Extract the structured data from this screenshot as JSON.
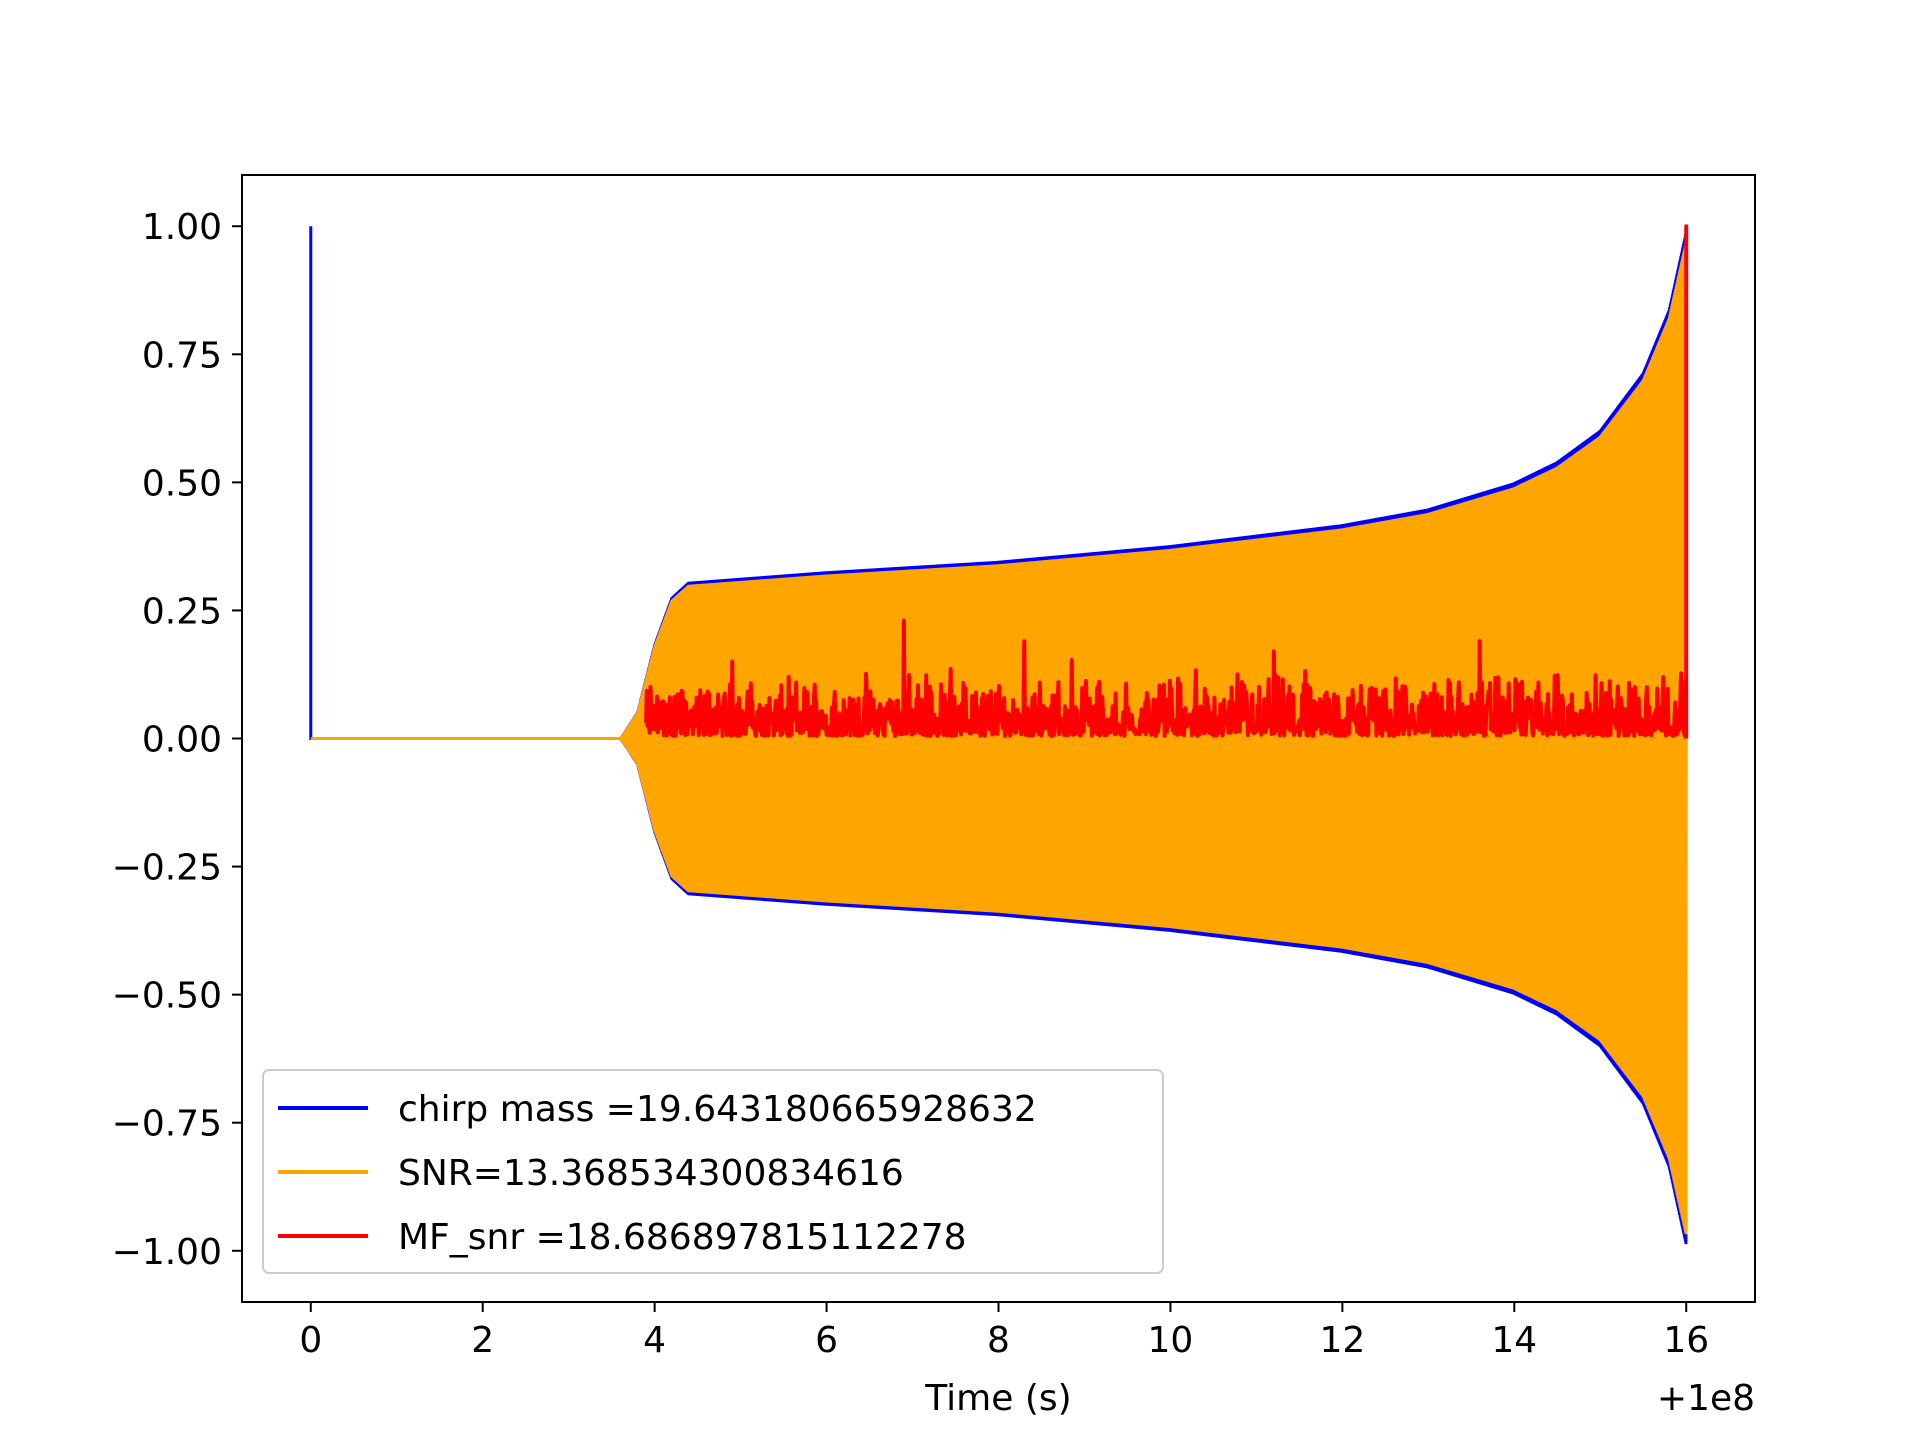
{
  "chart_data": {
    "type": "line",
    "xlabel": "Time (s)",
    "ylabel": "",
    "x_offset_label": "+1e8",
    "xlim": [
      -0.8,
      16.8
    ],
    "ylim": [
      -1.1,
      1.1
    ],
    "xticks": [
      0,
      2,
      4,
      6,
      8,
      10,
      12,
      14,
      16
    ],
    "xtick_labels": [
      "0",
      "2",
      "4",
      "6",
      "8",
      "10",
      "12",
      "14",
      "16"
    ],
    "yticks": [
      1.0,
      0.75,
      0.5,
      0.25,
      0.0,
      -0.25,
      -0.5,
      -0.75,
      -1.0
    ],
    "ytick_labels": [
      "1.00",
      "0.75",
      "0.50",
      "0.25",
      "0.00",
      "−0.25",
      "−0.50",
      "−0.75",
      "−1.00"
    ],
    "grid": false,
    "legend_position": "lower-left",
    "series": [
      {
        "name": "chirp mass =19.643180665928632",
        "color": "#0000ff",
        "points": [
          [
            0,
            0
          ],
          [
            0,
            1.0
          ],
          [
            0,
            0
          ],
          [
            3.6,
            0
          ],
          [
            16.0,
            0
          ]
        ]
      },
      {
        "name": "SNR=13.368534300834616",
        "color": "#ffa500",
        "envelope": [
          [
            3.6,
            0.0
          ],
          [
            3.8,
            0.05
          ],
          [
            4.0,
            0.18
          ],
          [
            4.2,
            0.27
          ],
          [
            4.4,
            0.3
          ],
          [
            6.0,
            0.32
          ],
          [
            8.0,
            0.34
          ],
          [
            10.0,
            0.37
          ],
          [
            12.0,
            0.41
          ],
          [
            13.0,
            0.44
          ],
          [
            14.0,
            0.49
          ],
          [
            14.5,
            0.53
          ],
          [
            15.0,
            0.59
          ],
          [
            15.5,
            0.7
          ],
          [
            15.8,
            0.82
          ],
          [
            16.0,
            0.97
          ]
        ],
        "points": [
          [
            0,
            0
          ],
          [
            3.6,
            0
          ]
        ]
      },
      {
        "name": "MF_snr =18.686897815112278",
        "color": "#ff0000",
        "baseline_range": [
          0.0,
          0.2
        ],
        "peaks": [
          [
            4.9,
            0.15
          ],
          [
            6.9,
            0.23
          ],
          [
            8.3,
            0.19
          ],
          [
            11.2,
            0.17
          ],
          [
            13.6,
            0.19
          ],
          [
            16.0,
            1.0
          ]
        ],
        "x_range": [
          3.9,
          16.0
        ]
      }
    ]
  }
}
